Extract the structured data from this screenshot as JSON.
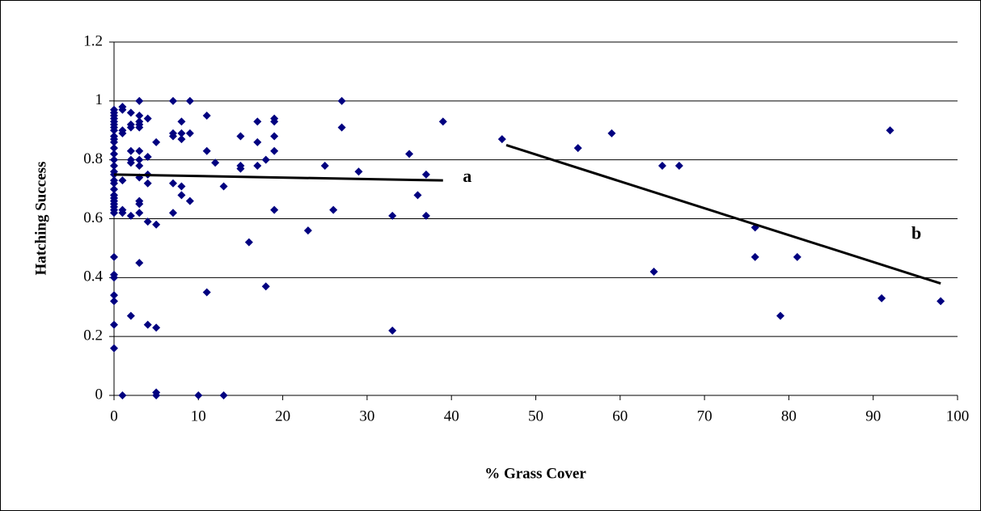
{
  "chart_data": {
    "type": "scatter",
    "x_label": "% Grass Cover",
    "y_label": "Hatching Success",
    "xlim": [
      0,
      100
    ],
    "ylim": [
      0,
      1.2
    ],
    "xticks": [
      0,
      10,
      20,
      30,
      40,
      50,
      60,
      70,
      80,
      90,
      100
    ],
    "yticks": [
      0,
      0.2,
      0.4,
      0.6,
      0.8,
      1,
      1.2
    ],
    "grid": true,
    "series": [
      {
        "color": "#000080",
        "x": [
          0,
          0,
          0,
          0,
          0,
          0,
          0,
          0,
          0,
          0,
          0,
          0,
          0,
          0,
          0,
          0,
          0,
          0,
          0,
          0,
          0,
          0,
          0,
          0,
          0,
          0,
          0,
          0,
          0,
          0,
          0,
          0,
          0,
          0,
          1,
          1,
          1,
          1,
          1,
          1,
          1,
          1,
          2,
          2,
          2,
          2,
          2,
          2,
          2,
          2,
          3,
          3,
          3,
          3,
          3,
          3,
          3,
          3,
          3,
          3,
          3,
          3,
          3,
          4,
          4,
          4,
          4,
          4,
          4,
          5,
          5,
          5,
          5,
          5,
          7,
          7,
          7,
          7,
          7,
          8,
          8,
          8,
          8,
          8,
          9,
          9,
          9,
          10,
          11,
          11,
          11,
          12,
          13,
          13,
          15,
          15,
          15,
          16,
          17,
          17,
          17,
          18,
          18,
          19,
          19,
          19,
          19,
          19,
          23,
          25,
          26,
          27,
          27,
          29,
          33,
          33,
          35,
          36,
          37,
          37,
          39,
          46,
          55,
          59,
          64,
          65,
          67,
          76,
          76,
          79,
          81,
          91,
          92,
          98
        ],
        "values": [
          0.97,
          0.96,
          0.95,
          0.94,
          0.93,
          0.92,
          0.91,
          0.9,
          0.88,
          0.87,
          0.86,
          0.84,
          0.82,
          0.8,
          0.78,
          0.76,
          0.75,
          0.73,
          0.72,
          0.7,
          0.68,
          0.67,
          0.66,
          0.65,
          0.64,
          0.63,
          0.62,
          0.47,
          0.41,
          0.4,
          0.34,
          0.32,
          0.24,
          0.16,
          0.98,
          0.97,
          0.9,
          0.89,
          0.73,
          0.63,
          0.62,
          0,
          0.96,
          0.92,
          0.91,
          0.83,
          0.8,
          0.79,
          0.61,
          0.27,
          1,
          0.95,
          0.93,
          0.92,
          0.91,
          0.83,
          0.8,
          0.78,
          0.74,
          0.66,
          0.65,
          0.62,
          0.45,
          0.94,
          0.81,
          0.75,
          0.72,
          0.59,
          0.24,
          0.86,
          0.58,
          0.23,
          0.01,
          0,
          1,
          0.89,
          0.88,
          0.72,
          0.62,
          0.93,
          0.89,
          0.87,
          0.71,
          0.68,
          1,
          0.89,
          0.66,
          0,
          0.95,
          0.83,
          0.35,
          0.79,
          0.71,
          0,
          0.88,
          0.78,
          0.77,
          0.52,
          0.93,
          0.86,
          0.78,
          0.8,
          0.37,
          0.94,
          0.93,
          0.88,
          0.83,
          0.63,
          0.56,
          0.78,
          0.63,
          1,
          0.91,
          0.76,
          0.61,
          0.22,
          0.82,
          0.68,
          0.75,
          0.61,
          0.93,
          0.87,
          0.84,
          0.89,
          0.42,
          0.78,
          0.78,
          0.57,
          0.47,
          0.27,
          0.47,
          0.33,
          0.9,
          0.32
        ]
      }
    ],
    "trend_lines": [
      {
        "label": "a",
        "color": "#000000",
        "x": [
          0,
          39
        ],
        "values": [
          0.75,
          0.73
        ]
      },
      {
        "label": "b",
        "color": "#000000",
        "x": [
          46.5,
          98
        ],
        "values": [
          0.85,
          0.38
        ]
      }
    ]
  }
}
